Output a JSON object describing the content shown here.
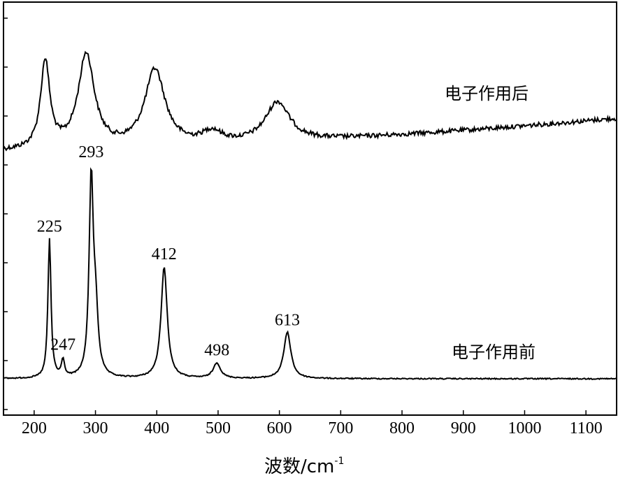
{
  "chart_data": {
    "type": "line",
    "xlabel": "波数/cm",
    "xlabel_superscript": "-1",
    "xlim": [
      150,
      1150
    ],
    "xticks": [
      200,
      300,
      400,
      500,
      600,
      700,
      800,
      900,
      1000,
      1100
    ],
    "ylabel": "",
    "y_ticks_labeled": false,
    "grid": false,
    "legend": "none",
    "line_color": "#000000",
    "series": [
      {
        "name": "电子作用后",
        "baseline_start": 0.1,
        "baseline_end": 0.35,
        "peaks": [
          {
            "x": 218,
            "height": 0.66,
            "width": 9
          },
          {
            "x": 285,
            "height": 0.71,
            "width": 16
          },
          {
            "x": 397,
            "height": 0.58,
            "width": 20
          },
          {
            "x": 490,
            "height": 0.09,
            "width": 20
          },
          {
            "x": 597,
            "height": 0.3,
            "width": 24
          }
        ]
      },
      {
        "name": "电子作用前",
        "baseline_start": 0.0,
        "baseline_end": 0.0,
        "peaks": [
          {
            "x": 225,
            "height": 0.72,
            "width": 3
          },
          {
            "x": 247,
            "height": 0.09,
            "width": 3
          },
          {
            "x": 293,
            "height": 1.0,
            "width": 4
          },
          {
            "x": 300,
            "height": 0.32,
            "width": 5
          },
          {
            "x": 412,
            "height": 0.58,
            "width": 6
          },
          {
            "x": 498,
            "height": 0.08,
            "width": 7
          },
          {
            "x": 613,
            "height": 0.24,
            "width": 7
          }
        ]
      }
    ],
    "peak_labels": [
      {
        "text": "225",
        "x": 225
      },
      {
        "text": "247",
        "x": 247
      },
      {
        "text": "293",
        "x": 293
      },
      {
        "text": "412",
        "x": 412
      },
      {
        "text": "498",
        "x": 498
      },
      {
        "text": "613",
        "x": 613
      }
    ]
  }
}
